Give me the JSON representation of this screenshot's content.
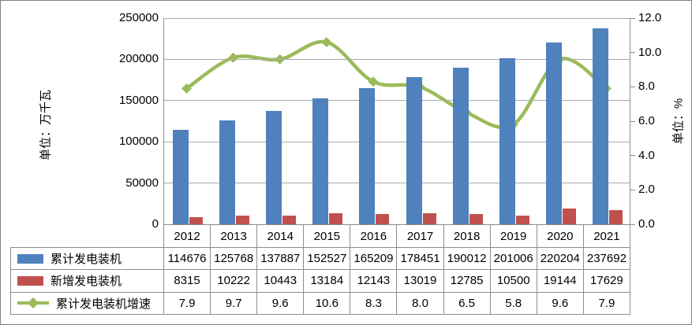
{
  "chart_data": {
    "type": "bar+line combo with data table",
    "categories": [
      "2012",
      "2013",
      "2014",
      "2015",
      "2016",
      "2017",
      "2018",
      "2019",
      "2020",
      "2021"
    ],
    "series": [
      {
        "name": "累计发电装机",
        "type": "bar",
        "axis": "left",
        "color": "#4f81bd",
        "decimals": 0,
        "values": [
          114676,
          125768,
          137887,
          152527,
          165209,
          178451,
          190012,
          201006,
          220204,
          237692
        ]
      },
      {
        "name": "新增发电装机",
        "type": "bar",
        "axis": "left",
        "color": "#c0504d",
        "decimals": 0,
        "values": [
          8315,
          10222,
          10443,
          13184,
          12143,
          13019,
          12785,
          10500,
          19144,
          17629
        ]
      },
      {
        "name": "累计发电装机增速",
        "type": "line",
        "axis": "right",
        "color": "#9bbb59",
        "decimals": 1,
        "values": [
          7.9,
          9.7,
          9.6,
          10.6,
          8.3,
          8.0,
          6.5,
          5.8,
          9.6,
          7.9
        ]
      }
    ],
    "left_axis": {
      "title": "单位：万千瓦",
      "min": 0,
      "max": 250000,
      "step": 50000,
      "tick_labels": [
        "250000",
        "200000",
        "150000",
        "100000",
        "50000",
        "0"
      ]
    },
    "right_axis": {
      "title": "单位：%",
      "min": 0,
      "max": 12,
      "step": 2,
      "tick_labels": [
        "12.0",
        "10.0",
        "8.0",
        "6.0",
        "4.0",
        "2.0",
        "0.0"
      ]
    },
    "grid": true,
    "legend_position": "data-table-left-column",
    "colors": {
      "gridline": "#a9a9a9",
      "axis_and_table_border": "#8c8c8c",
      "background": "#ffffff"
    }
  }
}
